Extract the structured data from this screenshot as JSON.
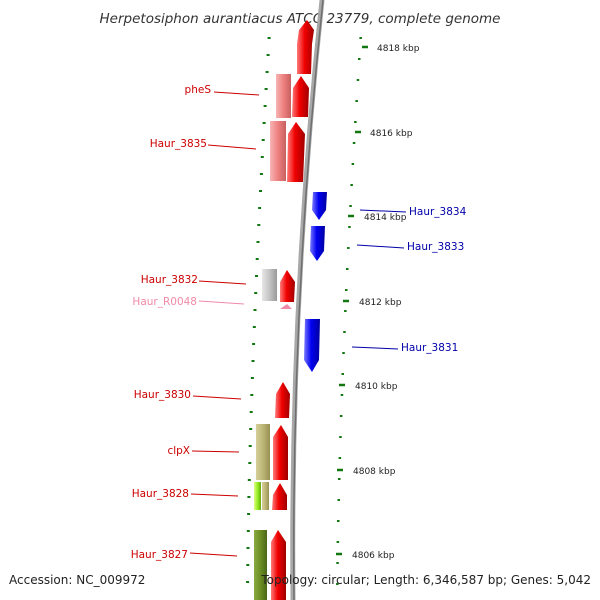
{
  "title": "Herpetosiphon aurantiacus ATCC 23779, complete genome",
  "footer": {
    "accession": "Accession: NC_009972",
    "topology": "Topology: circular; Length: 6,346,587 bp; Genes: 5,042"
  },
  "scale_labels": [
    "4818 kbp",
    "4816 kbp",
    "4814 kbp",
    "4812 kbp",
    "4810 kbp",
    "4808 kbp",
    "4806 kbp"
  ],
  "gene_labels": [
    {
      "text": "pheS",
      "color": "#cc0000"
    },
    {
      "text": "Haur_3835",
      "color": "#cc0000"
    },
    {
      "text": "Haur_3834",
      "color": "#0000aa"
    },
    {
      "text": "Haur_3833",
      "color": "#0000aa"
    },
    {
      "text": "Haur_3832",
      "color": "#cc0000"
    },
    {
      "text": "Haur_R0048",
      "color": "#f08aa8"
    },
    {
      "text": "Haur_3831",
      "color": "#0000aa"
    },
    {
      "text": "Haur_3830",
      "color": "#cc0000"
    },
    {
      "text": "clpX",
      "color": "#cc0000"
    },
    {
      "text": "Haur_3828",
      "color": "#cc0000"
    },
    {
      "text": "Haur_3827",
      "color": "#cc0000"
    }
  ],
  "colors": {
    "forward_gene": "#ee0000",
    "reverse_gene": "#0000ee",
    "tick": "#117711",
    "backbone": "#888888"
  }
}
